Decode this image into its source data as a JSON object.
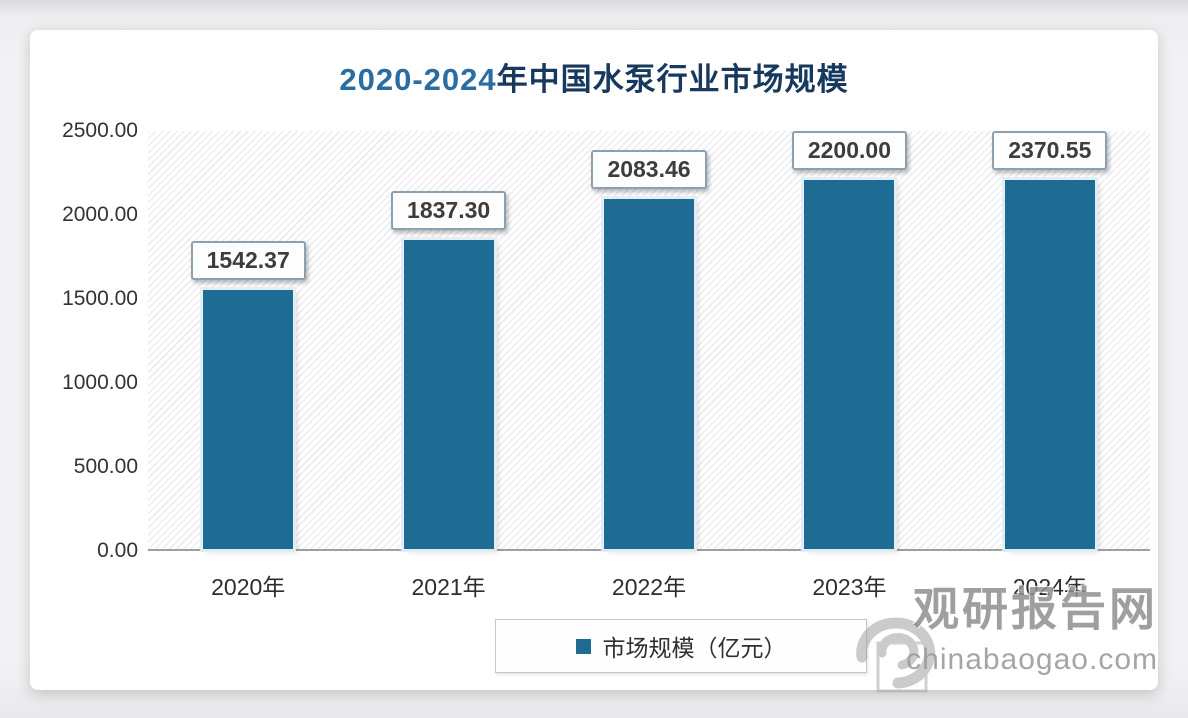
{
  "title": {
    "prefix": "2020-2024",
    "suffix": "年中国水泵行业市场规模"
  },
  "chart_data": {
    "type": "bar",
    "title": "2020-2024年中国水泵行业市场规模",
    "categories": [
      "2020年",
      "2021年",
      "2022年",
      "2023年",
      "2024年"
    ],
    "series": [
      {
        "name": "市场规模（亿元）",
        "values": [
          1542.37,
          1837.3,
          2083.46,
          2200.0,
          2370.55
        ]
      }
    ],
    "values": [
      1542.37,
      1837.3,
      2083.46,
      2200.0,
      2370.55
    ],
    "value_labels": [
      "1542.37",
      "1837.30",
      "2083.46",
      "2200.00",
      "2370.55"
    ],
    "xlabel": "",
    "ylabel": "",
    "ylim": [
      0,
      2500
    ],
    "y_tick_step": 500,
    "y_ticks": [
      "2500.00",
      "2000.00",
      "1500.00",
      "1000.00",
      "500.00",
      "0.00"
    ],
    "grid": false,
    "legend": {
      "label": "市场规模（亿元）",
      "position": "bottom"
    },
    "bar_color": "#1e6b94"
  },
  "watermark": {
    "brand": "观研报告网",
    "domain": "chinabaogao.com"
  }
}
